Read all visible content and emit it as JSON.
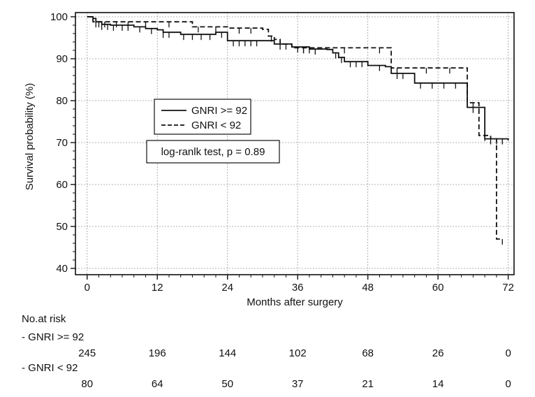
{
  "chart_data": {
    "type": "line",
    "subtype": "kaplan-meier",
    "title": "",
    "xlabel": "Months after surgery",
    "ylabel": "Survival probability (%)",
    "xlim": [
      -2,
      73
    ],
    "ylim": [
      38.5,
      101
    ],
    "xticks": [
      0,
      12,
      24,
      36,
      48,
      60,
      72
    ],
    "yticks": [
      40,
      50,
      60,
      70,
      80,
      90,
      100
    ],
    "grid": true,
    "legend_placement": "center-left",
    "series": [
      {
        "name": "GNRI >= 92",
        "style": "solid",
        "color": "#111111",
        "steps": [
          [
            0,
            100
          ],
          [
            0.5,
            100
          ],
          [
            1,
            99.6
          ],
          [
            1.5,
            98.8
          ],
          [
            2.5,
            98.2
          ],
          [
            4,
            98
          ],
          [
            8,
            97.6
          ],
          [
            10,
            97.2
          ],
          [
            12,
            96.9
          ],
          [
            13,
            96.3
          ],
          [
            15,
            96.3
          ],
          [
            16,
            95.8
          ],
          [
            20,
            95.8
          ],
          [
            22,
            96.3
          ],
          [
            24,
            94.3
          ],
          [
            30,
            94.3
          ],
          [
            32,
            93.5
          ],
          [
            34,
            93.5
          ],
          [
            35,
            92.8
          ],
          [
            38,
            92.3
          ],
          [
            41,
            92.2
          ],
          [
            42,
            91.4
          ],
          [
            43,
            90.3
          ],
          [
            44,
            89.3
          ],
          [
            48,
            88.4
          ],
          [
            51,
            88.1
          ],
          [
            52,
            86.5
          ],
          [
            55,
            86.5
          ],
          [
            56,
            84.2
          ],
          [
            58,
            84.2
          ],
          [
            65,
            78.4
          ],
          [
            67,
            78.4
          ],
          [
            68,
            70.9
          ],
          [
            72,
            70.5
          ]
        ],
        "censor": [
          [
            1.5,
            98.8
          ],
          [
            2.5,
            98.2
          ],
          [
            3.5,
            98.2
          ],
          [
            4.5,
            98
          ],
          [
            6,
            98
          ],
          [
            7,
            98
          ],
          [
            9,
            97.6
          ],
          [
            11,
            97.2
          ],
          [
            13,
            96.3
          ],
          [
            14,
            96.3
          ],
          [
            16.5,
            95.8
          ],
          [
            18,
            95.8
          ],
          [
            19.5,
            95.8
          ],
          [
            21,
            95.8
          ],
          [
            23,
            96.3
          ],
          [
            25,
            94.3
          ],
          [
            26,
            94.3
          ],
          [
            27,
            94.3
          ],
          [
            28,
            94.3
          ],
          [
            29,
            94.3
          ],
          [
            33,
            93.5
          ],
          [
            36,
            92.8
          ],
          [
            37,
            92.8
          ],
          [
            39,
            92.3
          ],
          [
            42.5,
            91.4
          ],
          [
            43.5,
            90.3
          ],
          [
            45,
            89.3
          ],
          [
            46,
            89.3
          ],
          [
            47,
            89.3
          ],
          [
            50,
            88.4
          ],
          [
            53,
            86.5
          ],
          [
            54,
            86.5
          ],
          [
            57,
            84.2
          ],
          [
            59,
            84.2
          ],
          [
            61,
            84.2
          ],
          [
            63,
            84.2
          ],
          [
            66,
            78.4
          ],
          [
            67,
            78.4
          ],
          [
            69,
            70.9
          ],
          [
            70,
            70.9
          ],
          [
            71,
            70.9
          ]
        ]
      },
      {
        "name": "GNRI < 92",
        "style": "dashed",
        "color": "#111111",
        "steps": [
          [
            0,
            100
          ],
          [
            1,
            98.8
          ],
          [
            2,
            98.8
          ],
          [
            8,
            98.8
          ],
          [
            18,
            97.6
          ],
          [
            24,
            97.3
          ],
          [
            30,
            97
          ],
          [
            31,
            95.4
          ],
          [
            32,
            94.6
          ],
          [
            33,
            93.5
          ],
          [
            35,
            92.6
          ],
          [
            40,
            92.6
          ],
          [
            43,
            92.6
          ],
          [
            48,
            92.6
          ],
          [
            52,
            87.8
          ],
          [
            60,
            87.8
          ],
          [
            65,
            79.5
          ],
          [
            67,
            71.7
          ],
          [
            69,
            70.9
          ],
          [
            70,
            47
          ]
        ],
        "censor": [
          [
            2,
            98.8
          ],
          [
            3,
            98.8
          ],
          [
            5,
            98.8
          ],
          [
            7,
            98.8
          ],
          [
            10,
            98.8
          ],
          [
            14,
            98.8
          ],
          [
            19,
            97.6
          ],
          [
            22,
            97.6
          ],
          [
            26,
            97.3
          ],
          [
            28,
            97.3
          ],
          [
            31.5,
            95.4
          ],
          [
            34,
            93.5
          ],
          [
            37,
            92.6
          ],
          [
            38,
            92.6
          ],
          [
            44,
            92.6
          ],
          [
            50,
            92.6
          ],
          [
            53,
            87.8
          ],
          [
            58,
            87.8
          ],
          [
            62,
            87.8
          ],
          [
            66,
            79.5
          ],
          [
            68,
            71.7
          ],
          [
            71,
            47
          ]
        ]
      }
    ],
    "annotations": [
      "log-ranlk test, p = 0.89"
    ],
    "at_risk": {
      "header": "No.at risk",
      "times": [
        0,
        12,
        24,
        36,
        48,
        60,
        72
      ],
      "groups": [
        {
          "label": "- GNRI >= 92",
          "counts": [
            "245",
            "196",
            "144",
            "102",
            "68",
            "26",
            "0"
          ]
        },
        {
          "label": "- GNRI < 92",
          "counts": [
            "80",
            "64",
            "50",
            "37",
            "21",
            "14",
            "0"
          ]
        }
      ]
    }
  }
}
